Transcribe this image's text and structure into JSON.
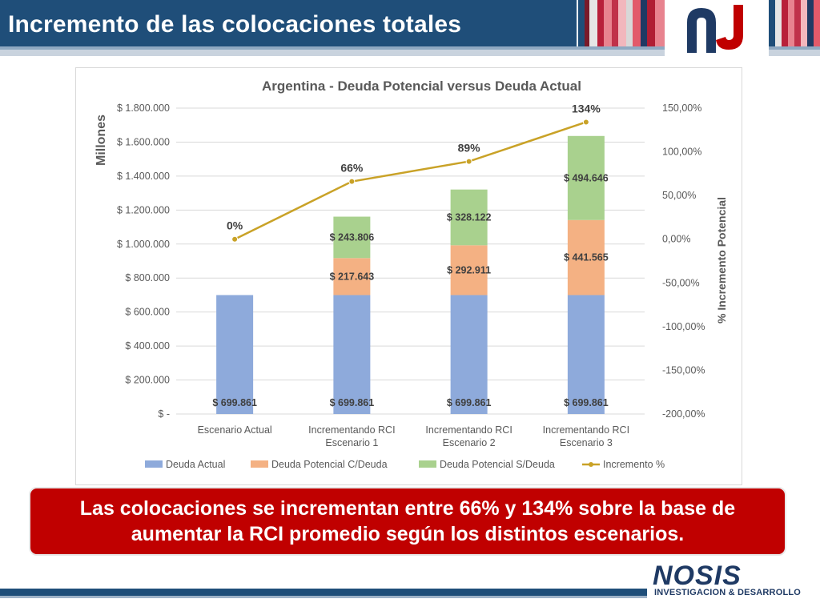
{
  "slide": {
    "title": "Incremento de las colocaciones totales",
    "callout": "Las colocaciones se incrementan entre 66% y 134% sobre la base de aumentar la RCI promedio según los distintos escenarios.",
    "brand_name": "NOSIS",
    "brand_subtitle": "INVESTIGACION & DESARROLLO"
  },
  "colors": {
    "header_blue": "#1f4e79",
    "callout_red": "#c00000",
    "deuda_actual": "#8eaadb",
    "deuda_c": "#f4b183",
    "deuda_s": "#a9d18e",
    "incremento": "#c9a227"
  },
  "chart_data": {
    "type": "bar",
    "stacked": true,
    "title": "Argentina - Deuda Potencial versus Deuda Actual",
    "ylabel": "Millones",
    "y2label": "% Incremento Potencial",
    "ylim": [
      0,
      1800000
    ],
    "y2lim": [
      -200,
      150
    ],
    "y_ticks": [
      "$ -",
      "$ 200.000",
      "$ 400.000",
      "$ 600.000",
      "$ 800.000",
      "$ 1.000.000",
      "$ 1.200.000",
      "$ 1.400.000",
      "$ 1.600.000",
      "$ 1.800.000"
    ],
    "y2_ticks": [
      "-200,00%",
      "-150,00%",
      "-100,00%",
      "-50,00%",
      "0,00%",
      "50,00%",
      "100,00%",
      "150,00%"
    ],
    "categories": [
      [
        "Escenario Actual"
      ],
      [
        "Incrementando RCI",
        "Escenario 1"
      ],
      [
        "Incrementando RCI",
        "Escenario 2"
      ],
      [
        "Incrementando RCI",
        "Escenario 3"
      ]
    ],
    "series": [
      {
        "name": "Deuda Actual",
        "values": [
          699861,
          699861,
          699861,
          699861
        ],
        "labels": [
          "$ 699.861",
          "$ 699.861",
          "$ 699.861",
          "$ 699.861"
        ]
      },
      {
        "name": "Deuda Potencial C/Deuda",
        "values": [
          0,
          217643,
          292911,
          441565
        ],
        "labels": [
          "",
          "$ 217.643",
          "$ 292.911",
          "$ 441.565"
        ]
      },
      {
        "name": "Deuda Potencial S/Deuda",
        "values": [
          0,
          243806,
          328122,
          494646
        ],
        "labels": [
          "",
          "$ 243.806",
          "$ 328.122",
          "$ 494.646"
        ]
      }
    ],
    "line": {
      "name": "Incremento %",
      "values": [
        0,
        66,
        89,
        134
      ],
      "labels": [
        "0%",
        "66%",
        "89%",
        "134%"
      ]
    },
    "legend_position": "bottom",
    "grid": true
  }
}
